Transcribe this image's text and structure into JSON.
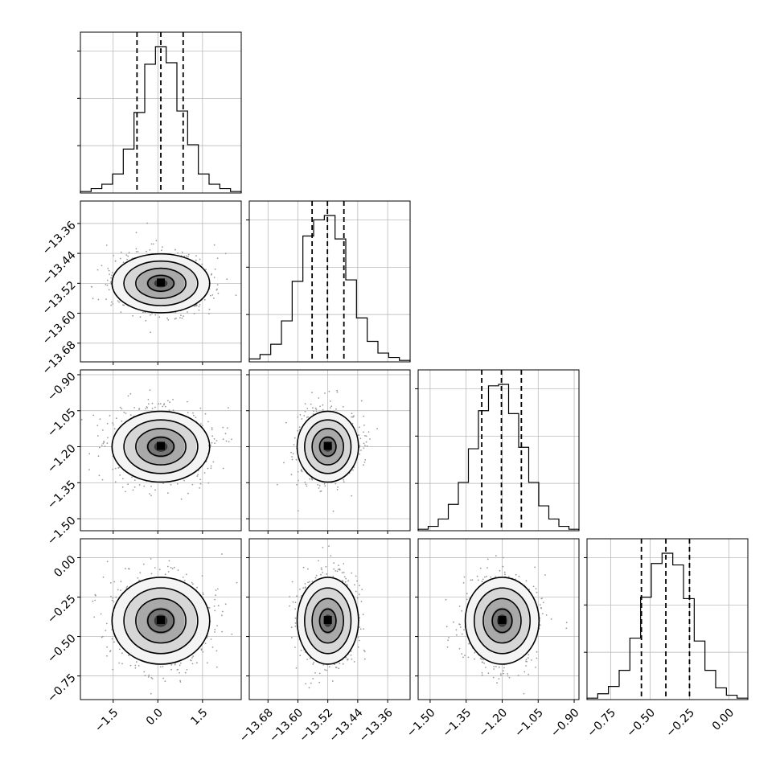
{
  "chart_data": {
    "type": "scatter",
    "subtype": "corner-plot",
    "n_params": 4,
    "parameters": [
      {
        "mean": 0.1,
        "sigma": 0.8,
        "range": [
          -2.6,
          2.8
        ],
        "quantiles": [
          -0.7,
          0.1,
          0.85
        ],
        "hist": [
          0.01,
          0.03,
          0.06,
          0.13,
          0.3,
          0.55,
          0.88,
          1.0,
          0.89,
          0.56,
          0.33,
          0.13,
          0.06,
          0.03,
          0.01
        ],
        "ticks": [
          -1.5,
          0.0,
          1.5
        ],
        "tick_labels": [
          "−1.5",
          "0.0",
          "1.5"
        ]
      },
      {
        "mean": -13.52,
        "sigma": 0.04,
        "range": [
          -13.73,
          -13.3
        ],
        "quantiles": [
          -13.562,
          -13.521,
          -13.477
        ],
        "hist": [
          0.02,
          0.05,
          0.12,
          0.28,
          0.55,
          0.86,
          0.97,
          1.0,
          0.84,
          0.56,
          0.3,
          0.14,
          0.06,
          0.03,
          0.01
        ],
        "ticks": [
          -13.68,
          -13.6,
          -13.52,
          -13.44,
          -13.36
        ],
        "tick_labels": [
          "−13.68",
          "−13.60",
          "−13.52",
          "−13.44",
          "−13.36"
        ]
      },
      {
        "mean": -1.2,
        "sigma": 0.075,
        "range": [
          -1.55,
          -0.88
        ],
        "quantiles": [
          -1.285,
          -1.203,
          -1.12
        ],
        "hist": [
          0.01,
          0.03,
          0.08,
          0.18,
          0.33,
          0.56,
          0.82,
          0.99,
          1.0,
          0.8,
          0.57,
          0.33,
          0.17,
          0.08,
          0.03,
          0.01
        ],
        "ticks": [
          -1.5,
          -1.35,
          -1.2,
          -1.05,
          -0.9
        ],
        "tick_labels": [
          "−1.50",
          "−1.35",
          "−1.20",
          "−1.05",
          "−0.90"
        ]
      },
      {
        "mean": -0.4,
        "sigma": 0.14,
        "range": [
          -0.9,
          0.12
        ],
        "quantiles": [
          -0.555,
          -0.4,
          -0.25
        ],
        "hist": [
          0.01,
          0.04,
          0.09,
          0.2,
          0.42,
          0.7,
          0.93,
          1.0,
          0.92,
          0.69,
          0.4,
          0.2,
          0.08,
          0.03,
          0.01
        ],
        "ticks": [
          -0.75,
          -0.5,
          -0.25,
          0.0
        ],
        "tick_labels": [
          "−0.75",
          "−0.50",
          "−0.25",
          "0.00"
        ]
      }
    ],
    "grid": true,
    "colors": {
      "lines": "#000000",
      "scatter": "#9a9a9a",
      "grid": "#b0b0b0"
    }
  }
}
